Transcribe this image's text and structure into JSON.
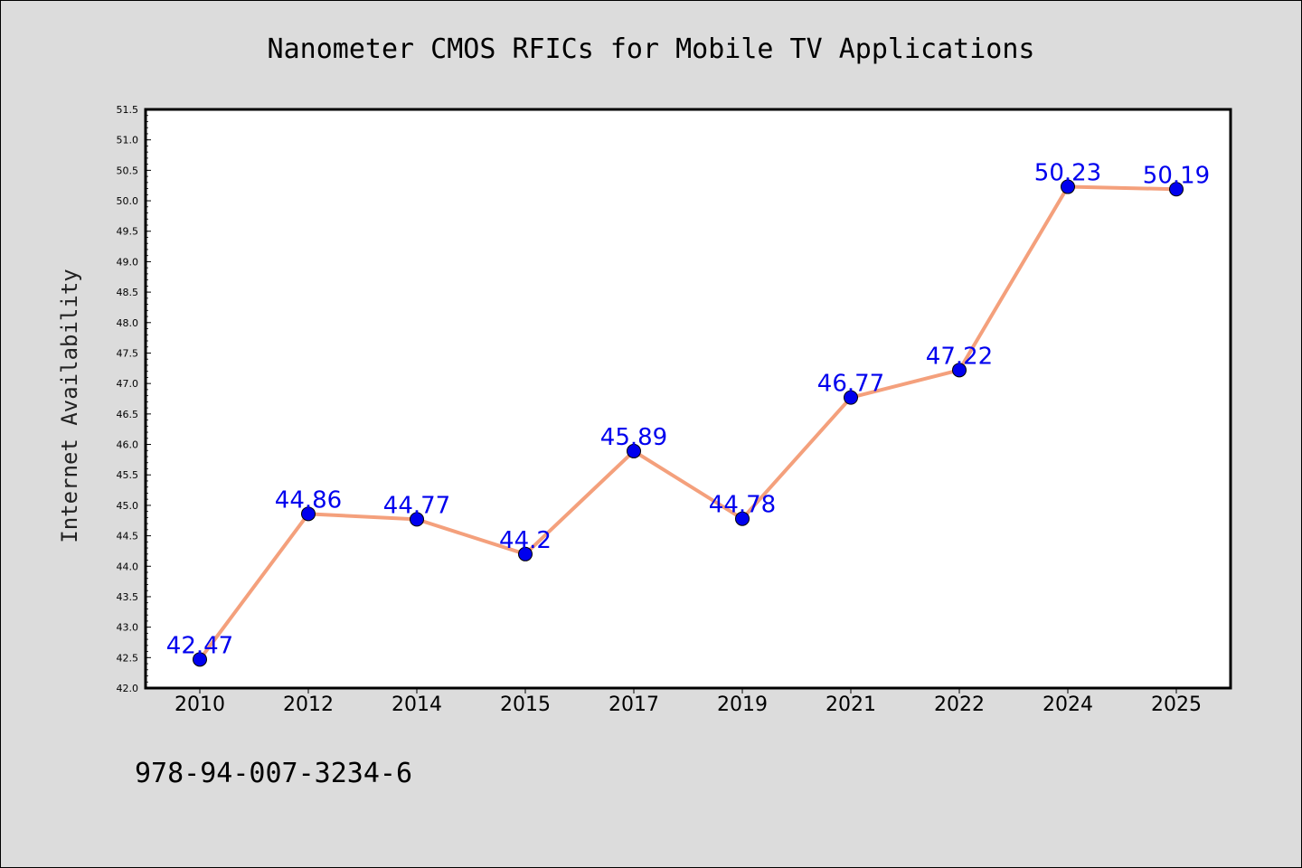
{
  "chart_data": {
    "type": "line",
    "title": "Nanometer CMOS RFICs for Mobile TV Applications",
    "xlabel": "",
    "ylabel": "Internet Availability",
    "categories": [
      "2010",
      "2012",
      "2014",
      "2015",
      "2017",
      "2019",
      "2021",
      "2022",
      "2024",
      "2025"
    ],
    "series": [
      {
        "values": [
          42.47,
          44.86,
          44.77,
          44.2,
          45.89,
          44.78,
          46.77,
          47.22,
          50.23,
          50.19
        ],
        "line_color": "#f4a07c",
        "marker_color": "#0000ee",
        "label_color": "#0000ee"
      }
    ],
    "ylim": [
      42.0,
      51.5
    ],
    "yticks": [
      "42.0",
      "42.5",
      "43.0",
      "43.5",
      "44.0",
      "44.5",
      "45.0",
      "45.5",
      "46.0",
      "46.5",
      "47.0",
      "47.5",
      "48.0",
      "48.5",
      "49.0",
      "49.5",
      "50.0",
      "50.5",
      "51.0",
      "51.5"
    ],
    "data_labels": [
      "42.47",
      "44.86",
      "44.77",
      "44.2",
      "45.89",
      "44.78",
      "46.77",
      "47.22",
      "50.23",
      "50.19"
    ],
    "grid": false,
    "legend": "none"
  },
  "footer_text": "978-94-007-3234-6"
}
